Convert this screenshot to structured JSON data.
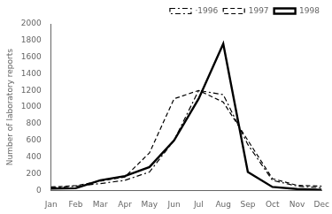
{
  "chart_data": {
    "type": "line",
    "categories": [
      "Jan",
      "Feb",
      "Mar",
      "Apr",
      "May",
      "Jun",
      "Jul",
      "Aug",
      "Sep",
      "Oct",
      "Nov",
      "Dec"
    ],
    "series": [
      {
        "name": "·1996",
        "color": "#000000",
        "line_style": "dashdot",
        "values": [
          30,
          50,
          80,
          120,
          220,
          600,
          1200,
          1150,
          550,
          120,
          50,
          30
        ]
      },
      {
        "name": "1997",
        "color": "#000000",
        "line_style": "dashed",
        "values": [
          40,
          55,
          110,
          160,
          450,
          1100,
          1200,
          1060,
          600,
          140,
          60,
          50
        ]
      },
      {
        "name": "1998",
        "color": "#000000",
        "line_style": "solid",
        "values": [
          20,
          25,
          120,
          170,
          280,
          600,
          1100,
          1760,
          220,
          40,
          15,
          5
        ]
      }
    ],
    "ylabel": "Number of laboratory reports",
    "ylim": [
      0,
      2000
    ],
    "yticks": [
      0,
      200,
      400,
      600,
      800,
      1000,
      1200,
      1400,
      1600,
      1800,
      2000
    ],
    "grid": false,
    "legend": "upper right"
  }
}
